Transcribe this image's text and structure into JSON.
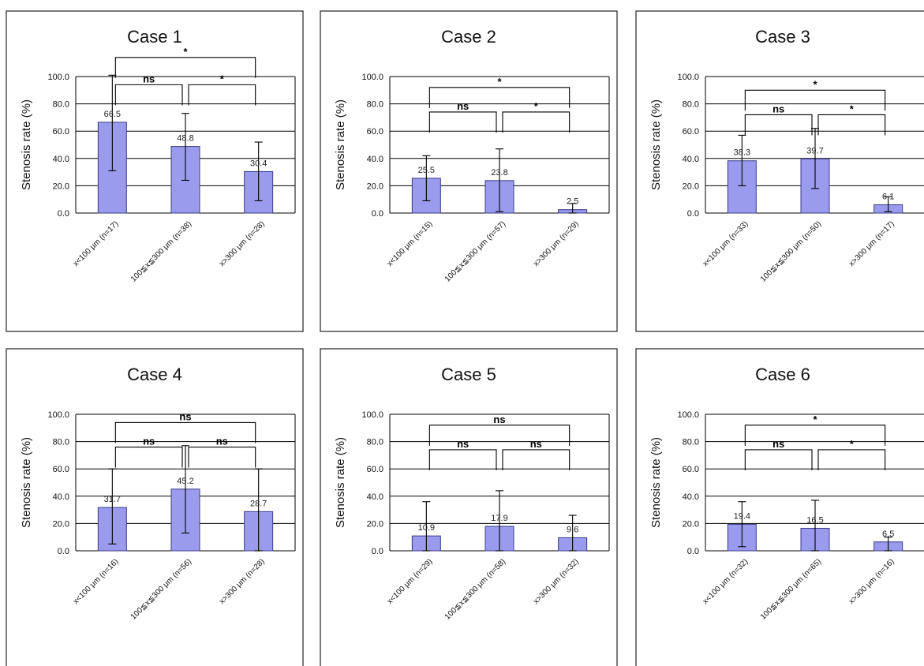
{
  "colors": {
    "bar_fill": "#9b9bee",
    "bar_stroke": "#3a3a88",
    "grid": "#000000",
    "background": "#ffffff"
  },
  "chart_data": [
    {
      "type": "bar",
      "title": "Case 1",
      "xlabel": "",
      "ylabel": "Stenosis rate (%)",
      "ylim": [
        0,
        100
      ],
      "yticks": [
        "0.0",
        "20.0",
        "40.0",
        "60.0",
        "80.0",
        "100.0"
      ],
      "grid": true,
      "categories": [
        "x<100 μm (n=17)",
        "100≦x≦300 μm (n=38)",
        "x>300 μm (n=28)"
      ],
      "values": [
        66.5,
        48.8,
        30.4
      ],
      "value_labels": [
        "66.5",
        "48.8",
        "30.4"
      ],
      "error_upper": [
        101,
        73,
        52
      ],
      "error_lower": [
        31,
        24,
        9
      ],
      "comparisons": [
        {
          "label": "ns",
          "from": 0,
          "to": 1,
          "level": 94
        },
        {
          "label": "*",
          "from": 1,
          "to": 2,
          "level": 94
        },
        {
          "label": "*",
          "from": 0,
          "to": 2,
          "level": 114
        }
      ]
    },
    {
      "type": "bar",
      "title": "Case 2",
      "xlabel": "",
      "ylabel": "Stenosis rate (%)",
      "ylim": [
        0,
        100
      ],
      "yticks": [
        "0.0",
        "20.0",
        "40.0",
        "60.0",
        "80.0",
        "100.0"
      ],
      "grid": true,
      "categories": [
        "x<100 μm (n=15)",
        "100≦x≦300 μm (n=57)",
        "x>300 μm (n=29)"
      ],
      "values": [
        25.5,
        23.8,
        2.5
      ],
      "value_labels": [
        "25.5",
        "23.8",
        "2.5"
      ],
      "error_upper": [
        42,
        47,
        7
      ],
      "error_lower": [
        9,
        1,
        0
      ],
      "comparisons": [
        {
          "label": "ns",
          "from": 0,
          "to": 1,
          "level": 74
        },
        {
          "label": "*",
          "from": 1,
          "to": 2,
          "level": 74
        },
        {
          "label": "*",
          "from": 0,
          "to": 2,
          "level": 92
        }
      ]
    },
    {
      "type": "bar",
      "title": "Case 3",
      "xlabel": "",
      "ylabel": "Stenosis rate (%)",
      "ylim": [
        0,
        100
      ],
      "yticks": [
        "0.0",
        "20.0",
        "40.0",
        "60.0",
        "80.0",
        "100.0"
      ],
      "grid": true,
      "categories": [
        "x<100 μm (n=33)",
        "100≦x≦300 μm (n=50)",
        "x>300 μm (n=17)"
      ],
      "values": [
        38.3,
        39.7,
        6.1
      ],
      "value_labels": [
        "38.3",
        "39.7",
        "6.1"
      ],
      "error_upper": [
        57,
        62,
        12
      ],
      "error_lower": [
        20,
        18,
        1
      ],
      "comparisons": [
        {
          "label": "ns",
          "from": 0,
          "to": 1,
          "level": 72
        },
        {
          "label": "*",
          "from": 1,
          "to": 2,
          "level": 72
        },
        {
          "label": "*",
          "from": 0,
          "to": 2,
          "level": 90
        }
      ]
    },
    {
      "type": "bar",
      "title": "Case 4",
      "xlabel": "",
      "ylabel": "Stenosis rate (%)",
      "ylim": [
        0,
        100
      ],
      "yticks": [
        "0.0",
        "20.0",
        "40.0",
        "60.0",
        "80.0",
        "100.0"
      ],
      "grid": true,
      "categories": [
        "x<100 μm (n=16)",
        "100≦x≦300 μm (n=56)",
        "x>300 μm (n=28)"
      ],
      "values": [
        31.7,
        45.2,
        28.7
      ],
      "value_labels": [
        "31.7",
        "45.2",
        "28.7"
      ],
      "error_upper": [
        60,
        77,
        60
      ],
      "error_lower": [
        5,
        13,
        0
      ],
      "comparisons": [
        {
          "label": "ns",
          "from": 0,
          "to": 1,
          "level": 76
        },
        {
          "label": "ns",
          "from": 1,
          "to": 2,
          "level": 76
        },
        {
          "label": "ns",
          "from": 0,
          "to": 2,
          "level": 94
        }
      ]
    },
    {
      "type": "bar",
      "title": "Case 5",
      "xlabel": "",
      "ylabel": "Stenosis rate (%)",
      "ylim": [
        0,
        100
      ],
      "yticks": [
        "0.0",
        "20.0",
        "40.0",
        "60.0",
        "80.0",
        "100.0"
      ],
      "grid": true,
      "categories": [
        "x<100 μm (n=29)",
        "100≦x≦300 μm (n=58)",
        "x>300 μm (n=32)"
      ],
      "values": [
        10.9,
        17.9,
        9.6
      ],
      "value_labels": [
        "10.9",
        "17.9",
        "9.6"
      ],
      "error_upper": [
        36,
        44,
        26
      ],
      "error_lower": [
        0,
        0,
        0
      ],
      "comparisons": [
        {
          "label": "ns",
          "from": 0,
          "to": 1,
          "level": 74
        },
        {
          "label": "ns",
          "from": 1,
          "to": 2,
          "level": 74
        },
        {
          "label": "ns",
          "from": 0,
          "to": 2,
          "level": 92
        }
      ]
    },
    {
      "type": "bar",
      "title": "Case 6",
      "xlabel": "",
      "ylabel": "Stenosis rate (%)",
      "ylim": [
        0,
        100
      ],
      "yticks": [
        "0.0",
        "20.0",
        "40.0",
        "60.0",
        "80.0",
        "100.0"
      ],
      "grid": true,
      "categories": [
        "x<100 μm (n=32)",
        "100≦x≦300 μm (n=65)",
        "x>300 μm (n=16)"
      ],
      "values": [
        19.4,
        16.5,
        6.5
      ],
      "value_labels": [
        "19.4",
        "16.5",
        "6.5"
      ],
      "error_upper": [
        36,
        37,
        10
      ],
      "error_lower": [
        3,
        0,
        0
      ],
      "comparisons": [
        {
          "label": "ns",
          "from": 0,
          "to": 1,
          "level": 74
        },
        {
          "label": "*",
          "from": 1,
          "to": 2,
          "level": 74
        },
        {
          "label": "*",
          "from": 0,
          "to": 2,
          "level": 92
        }
      ]
    }
  ]
}
